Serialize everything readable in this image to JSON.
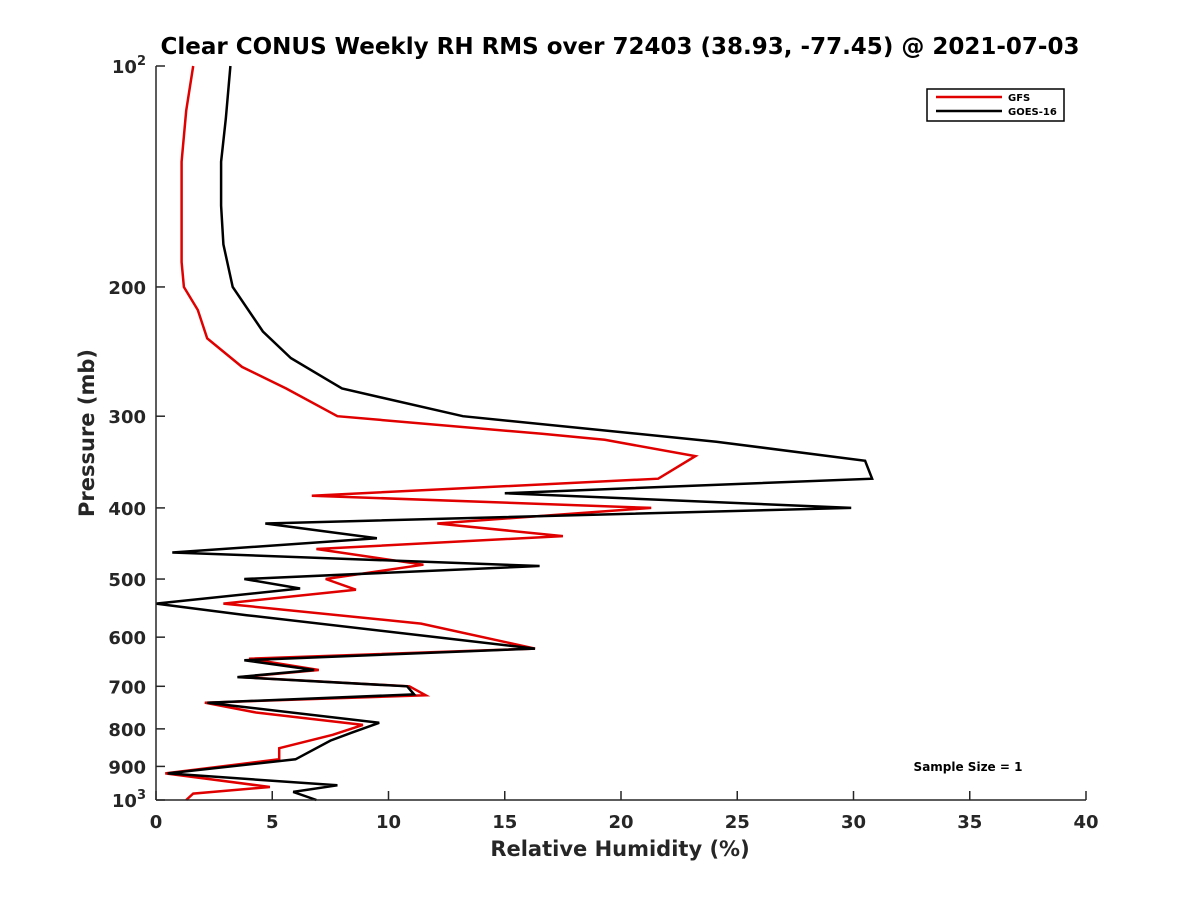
{
  "chart_data": {
    "type": "line",
    "title": "Clear CONUS Weekly RH RMS over 72403 (38.93, -77.45) @ 2021-07-03",
    "xlabel": "Relative Humidity (%)",
    "ylabel": "Pressure (mb)",
    "xlim": [
      0,
      40
    ],
    "ylim": [
      100,
      1000
    ],
    "y_scale": "log",
    "y_reversed": true,
    "grid": false,
    "x_ticks": [
      "0",
      "5",
      "10",
      "15",
      "20",
      "25",
      "30",
      "35",
      "40"
    ],
    "y_ticks": [
      {
        "value": 100,
        "label": "10",
        "sup": "2"
      },
      {
        "value": 200,
        "label": "200",
        "sup": ""
      },
      {
        "value": 300,
        "label": "300",
        "sup": ""
      },
      {
        "value": 400,
        "label": "400",
        "sup": ""
      },
      {
        "value": 500,
        "label": "500",
        "sup": ""
      },
      {
        "value": 600,
        "label": "600",
        "sup": ""
      },
      {
        "value": 700,
        "label": "700",
        "sup": ""
      },
      {
        "value": 800,
        "label": "800",
        "sup": ""
      },
      {
        "value": 900,
        "label": "900",
        "sup": ""
      },
      {
        "value": 1000,
        "label": "10",
        "sup": "3"
      }
    ],
    "legend_position": "top-right",
    "annotation": "Sample Size = 1",
    "series": [
      {
        "name": "GFS",
        "color": "#e00000",
        "points": [
          [
            1.6,
            100
          ],
          [
            1.3,
            115
          ],
          [
            1.1,
            135
          ],
          [
            1.1,
            160
          ],
          [
            1.1,
            185
          ],
          [
            1.2,
            200
          ],
          [
            1.8,
            215
          ],
          [
            2.2,
            235
          ],
          [
            3.7,
            257
          ],
          [
            5.6,
            275
          ],
          [
            7.8,
            300
          ],
          [
            16.6,
            317
          ],
          [
            19.3,
            323
          ],
          [
            23.2,
            340
          ],
          [
            21.6,
            365
          ],
          [
            6.7,
            385
          ],
          [
            21.3,
            400
          ],
          [
            12.1,
            420
          ],
          [
            17.5,
            437
          ],
          [
            6.9,
            455
          ],
          [
            11.5,
            478
          ],
          [
            7.3,
            500
          ],
          [
            8.6,
            517
          ],
          [
            2.9,
            540
          ],
          [
            11.4,
            575
          ],
          [
            16.3,
            622
          ],
          [
            4.0,
            642
          ],
          [
            7.0,
            665
          ],
          [
            3.6,
            680
          ],
          [
            10.9,
            700
          ],
          [
            11.6,
            720
          ],
          [
            2.1,
            737
          ],
          [
            4.3,
            760
          ],
          [
            8.9,
            790
          ],
          [
            7.6,
            815
          ],
          [
            5.3,
            850
          ],
          [
            5.3,
            880
          ],
          [
            0.4,
            920
          ],
          [
            4.9,
            960
          ],
          [
            1.6,
            980
          ],
          [
            1.3,
            1000
          ]
        ]
      },
      {
        "name": "GOES-16",
        "color": "#000000",
        "points": [
          [
            3.2,
            100
          ],
          [
            3.0,
            118
          ],
          [
            2.8,
            135
          ],
          [
            2.8,
            155
          ],
          [
            2.9,
            175
          ],
          [
            3.3,
            200
          ],
          [
            4.6,
            230
          ],
          [
            5.8,
            250
          ],
          [
            8.0,
            275
          ],
          [
            13.2,
            300
          ],
          [
            24.1,
            325
          ],
          [
            30.5,
            345
          ],
          [
            30.8,
            365
          ],
          [
            15.0,
            382
          ],
          [
            29.9,
            400
          ],
          [
            4.7,
            420
          ],
          [
            9.5,
            440
          ],
          [
            0.7,
            460
          ],
          [
            16.5,
            480
          ],
          [
            3.8,
            500
          ],
          [
            6.2,
            515
          ],
          [
            0.0,
            540
          ],
          [
            3.9,
            560
          ],
          [
            16.3,
            622
          ],
          [
            3.8,
            645
          ],
          [
            6.8,
            665
          ],
          [
            3.5,
            680
          ],
          [
            10.8,
            700
          ],
          [
            11.1,
            718
          ],
          [
            2.2,
            737
          ],
          [
            9.6,
            785
          ],
          [
            8.4,
            810
          ],
          [
            7.5,
            830
          ],
          [
            6.0,
            880
          ],
          [
            0.5,
            920
          ],
          [
            7.8,
            955
          ],
          [
            5.9,
            975
          ],
          [
            6.9,
            1000
          ]
        ]
      }
    ]
  }
}
